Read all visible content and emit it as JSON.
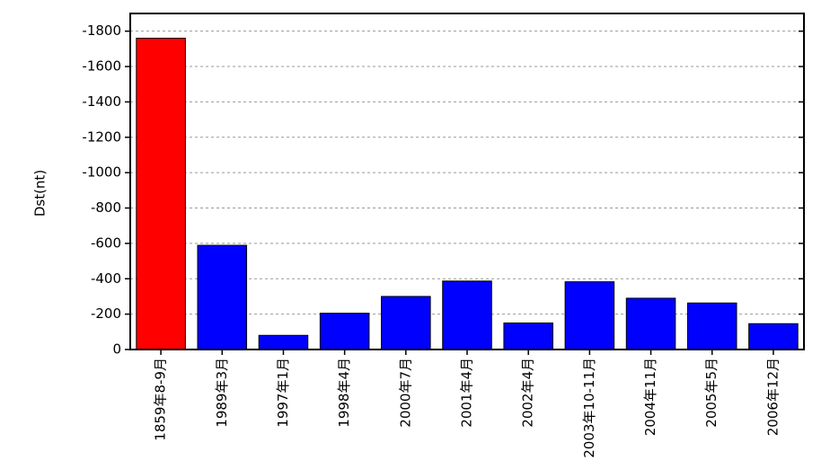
{
  "chart_data": {
    "type": "bar",
    "y_label": "Dst(nt)",
    "categories": [
      "1859年8-9月",
      "1989年3月",
      "1997年1月",
      "1998年4月",
      "2000年7月",
      "2001年4月",
      "2002年4月",
      "2003年10-11月",
      "2004年11月",
      "2005年5月",
      "2006年12月"
    ],
    "values": [
      -1760,
      -589,
      -80,
      -205,
      -300,
      -387,
      -150,
      -383,
      -290,
      -263,
      -146
    ],
    "colors": [
      "#ff0000",
      "#0000ff",
      "#0000ff",
      "#0000ff",
      "#0000ff",
      "#0000ff",
      "#0000ff",
      "#0000ff",
      "#0000ff",
      "#0000ff",
      "#0000ff"
    ],
    "label_colors": [
      "#e00000",
      "#000000",
      "#000000",
      "#000000",
      "#000000",
      "#000000",
      "#000000",
      "#000000",
      "#000000",
      "#000000",
      "#000000"
    ],
    "ylim": [
      0,
      -1900
    ],
    "yticks": [
      0,
      -200,
      -400,
      -600,
      -800,
      -1000,
      -1200,
      -1400,
      -1600,
      -1800
    ],
    "grid": true
  }
}
